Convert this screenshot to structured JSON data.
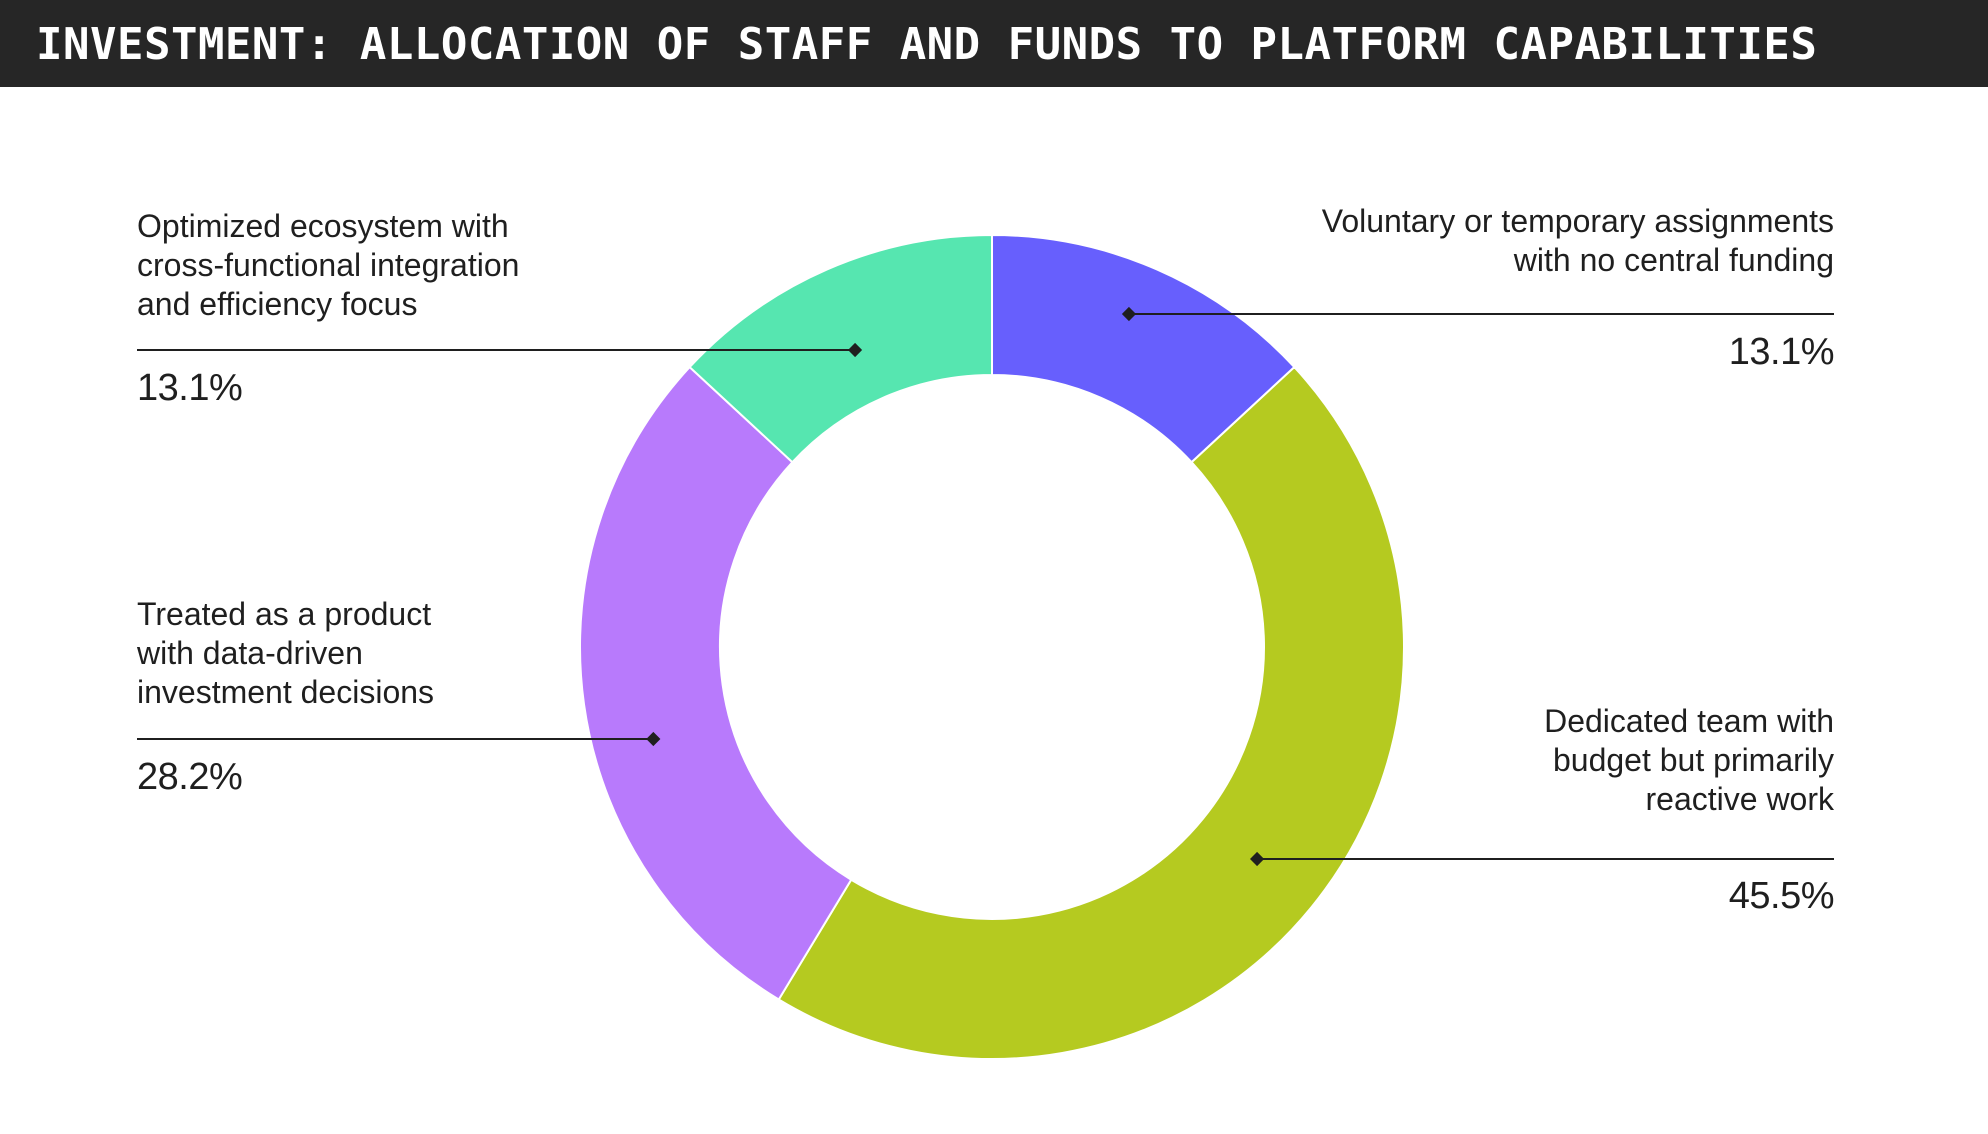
{
  "header": {
    "title": "INVESTMENT: ALLOCATION OF STAFF AND FUNDS TO PLATFORM CAPABILITIES"
  },
  "chart_data": {
    "type": "pie",
    "title": "INVESTMENT: ALLOCATION OF STAFF AND FUNDS TO PLATFORM CAPABILITIES",
    "donut": true,
    "slices": [
      {
        "label": "Voluntary or temporary assignments with no central funding",
        "label_lines": [
          "Voluntary or temporary assignments",
          "with no central funding"
        ],
        "value": 13.1,
        "value_label": "13.1%",
        "color": "#675ffd"
      },
      {
        "label": "Dedicated team with budget but primarily reactive work",
        "label_lines": [
          "Dedicated team with",
          "budget but primarily",
          "reactive work"
        ],
        "value": 45.5,
        "value_label": "45.5%",
        "color": "#b5ca20"
      },
      {
        "label": "Treated as a product with data-driven investment decisions",
        "label_lines": [
          "Treated as a product",
          "with data-driven",
          "investment decisions"
        ],
        "value": 28.2,
        "value_label": "28.2%",
        "color": "#b87afc"
      },
      {
        "label": "Optimized ecosystem with cross-functional integration and efficiency focus",
        "label_lines": [
          "Optimized ecosystem with",
          "cross-functional integration",
          "and efficiency focus"
        ],
        "value": 13.1,
        "value_label": "13.1%",
        "color": "#56e6b0"
      }
    ]
  }
}
